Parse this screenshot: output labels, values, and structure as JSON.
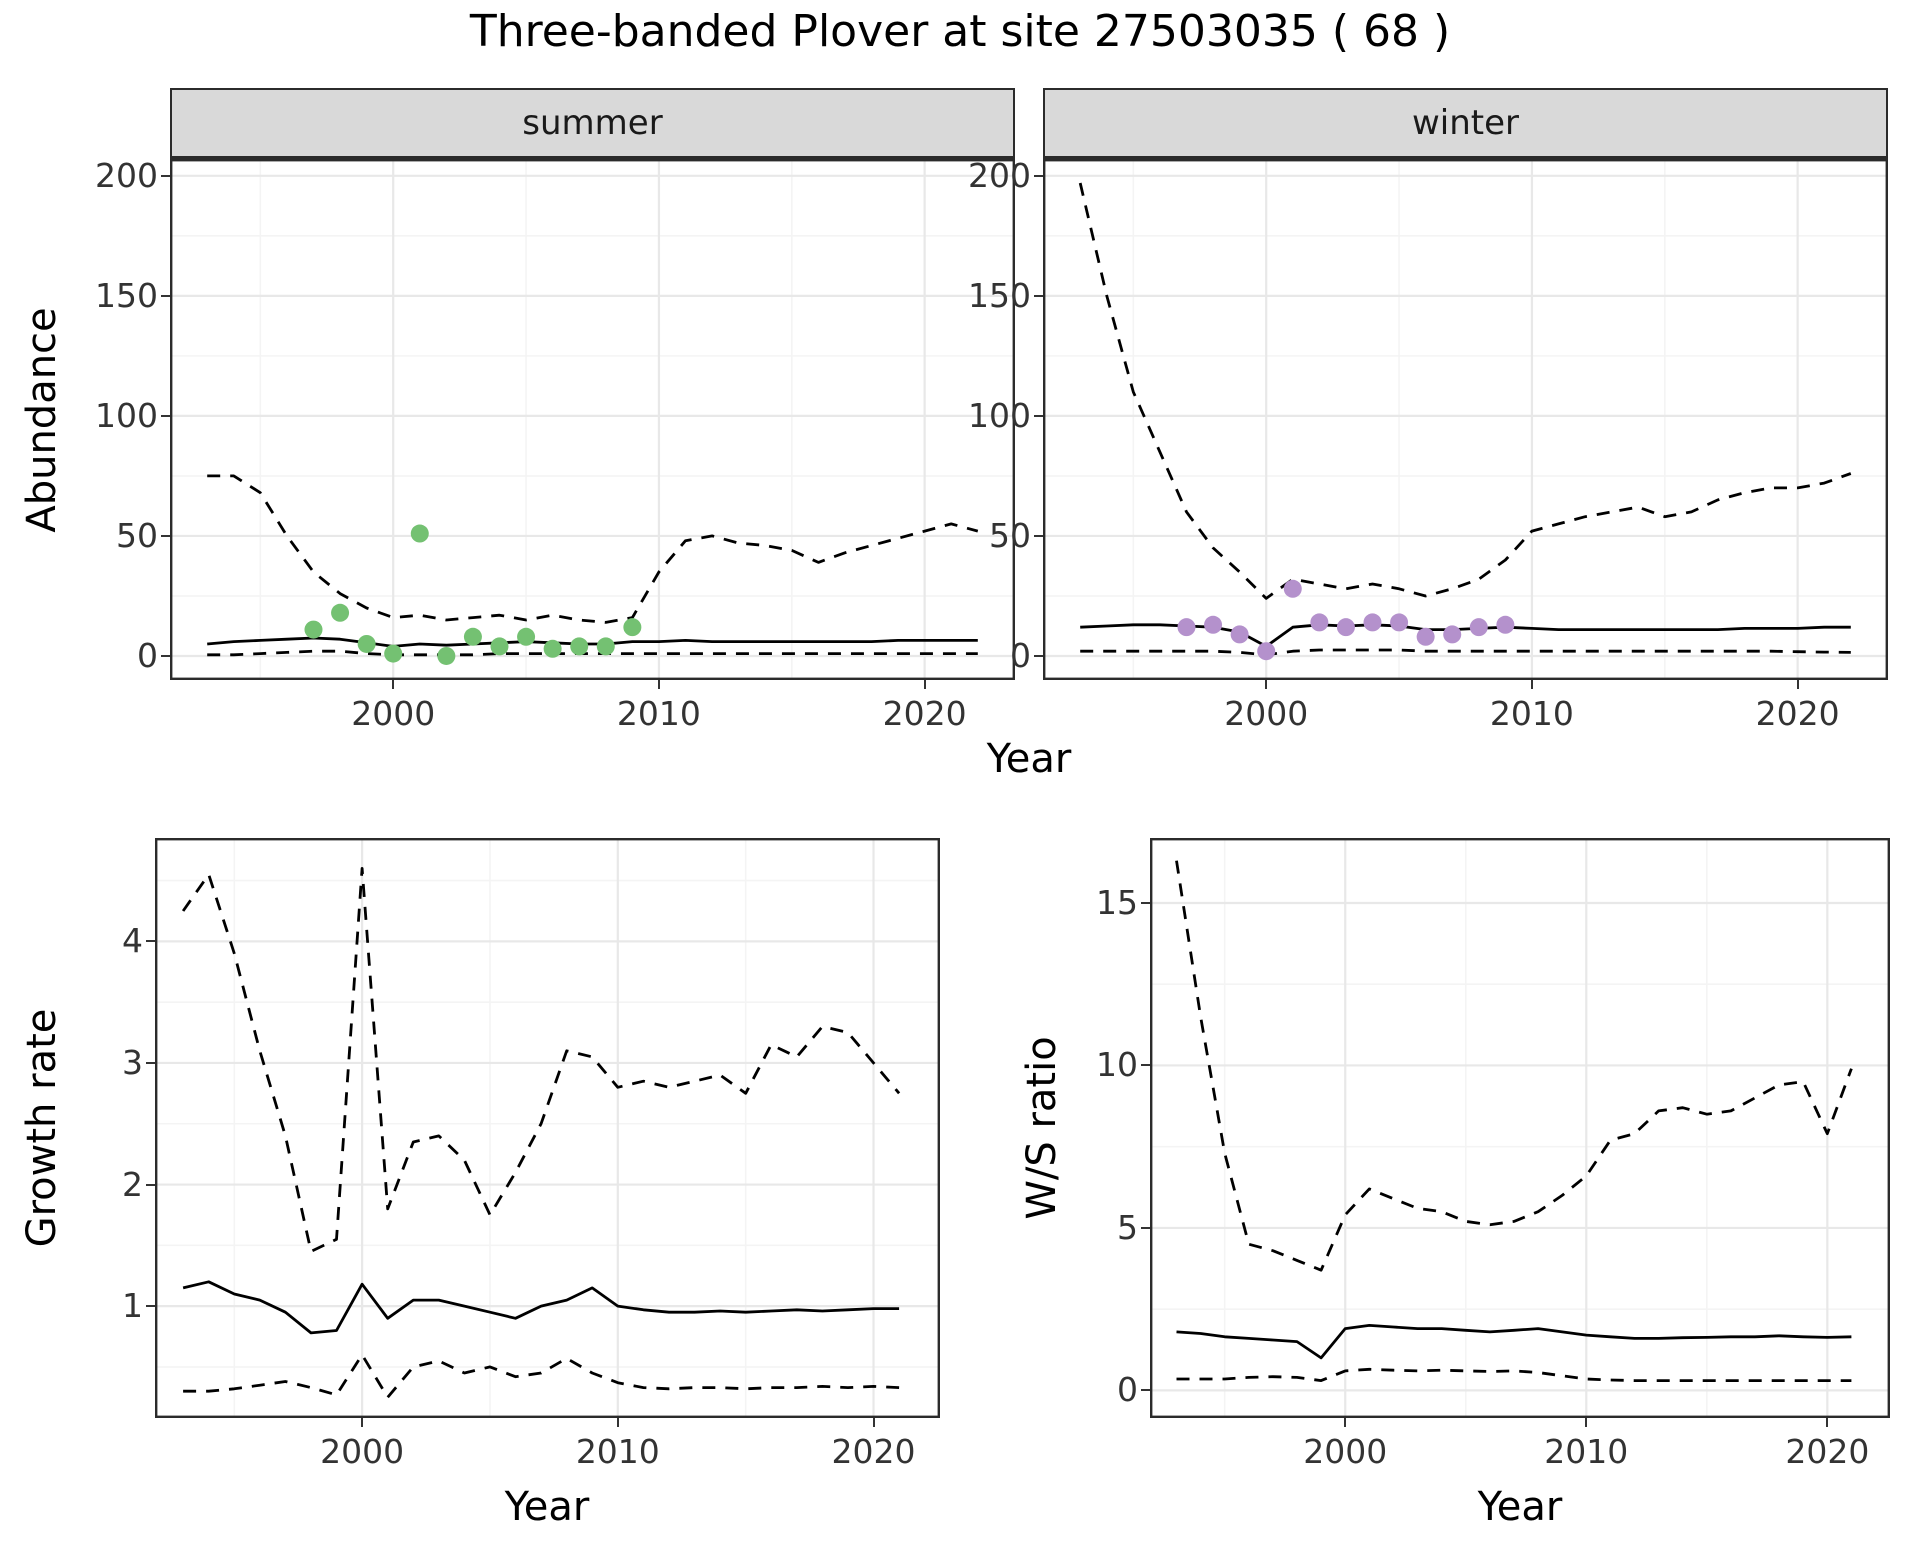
{
  "title": "Three-banded Plover at site 27503035 ( 68 )",
  "colors": {
    "series_line": "#000000",
    "summer_points": "#74c172",
    "winter_points": "#b491cc",
    "strip_background": "#d9d9d9",
    "panel_border": "#2b2b2b",
    "grid_major": "#e8e8e8",
    "grid_minor": "#f4f4f4",
    "tick_text": "#333333"
  },
  "chart_data": [
    {
      "type": "line",
      "facet_label": "summer",
      "ylabel": "Abundance",
      "xlabel": "Year",
      "grid": true,
      "legend": "none",
      "xlim": [
        1991.6,
        2023.4
      ],
      "ylim": [
        -10,
        207
      ],
      "xticks": [
        2000,
        2010,
        2020
      ],
      "xticks_minor": [
        1995,
        2005,
        2015
      ],
      "yticks": [
        0,
        50,
        100,
        150,
        200
      ],
      "yticks_minor": [
        25,
        75,
        125,
        175
      ],
      "x": [
        1993,
        1994,
        1995,
        1996,
        1997,
        1998,
        1999,
        2000,
        2001,
        2002,
        2003,
        2004,
        2005,
        2006,
        2007,
        2008,
        2009,
        2010,
        2011,
        2012,
        2013,
        2014,
        2015,
        2016,
        2017,
        2018,
        2019,
        2020,
        2021,
        2022
      ],
      "series": [
        {
          "name": "upper_ci",
          "linetype": "dashed",
          "values": [
            75,
            75,
            68,
            50,
            35,
            26,
            20,
            16,
            17,
            15,
            16,
            17,
            15,
            17,
            15,
            14,
            16,
            35,
            48,
            50,
            47,
            46,
            44,
            39,
            43,
            46,
            49,
            52,
            55,
            52
          ]
        },
        {
          "name": "median",
          "linetype": "solid",
          "values": [
            5,
            6,
            6.5,
            7,
            7.5,
            7,
            5.5,
            4,
            5,
            4.5,
            5,
            5.5,
            6,
            5.5,
            5,
            5,
            6,
            6,
            6.5,
            6,
            6,
            6,
            6,
            6,
            6,
            6,
            6.5,
            6.5,
            6.5,
            6.5
          ]
        },
        {
          "name": "lower_ci",
          "linetype": "dashed",
          "values": [
            0.5,
            0.5,
            1,
            1.5,
            2,
            2,
            1,
            0.5,
            0.5,
            0.5,
            0.5,
            1,
            1,
            1,
            1,
            1,
            1,
            1,
            1,
            1,
            1,
            1,
            1,
            1,
            1,
            1,
            1,
            1,
            1,
            1
          ]
        }
      ],
      "points": {
        "name": "observed_counts_summer",
        "color_key": "summer_points",
        "x": [
          1997,
          1998,
          1999,
          2000,
          2001,
          2002,
          2003,
          2004,
          2005,
          2006,
          2007,
          2008,
          2009
        ],
        "y": [
          11,
          18,
          5,
          1,
          51,
          0,
          8,
          4,
          8,
          3,
          4,
          4,
          12
        ]
      }
    },
    {
      "type": "line",
      "facet_label": "winter",
      "ylabel": "Abundance",
      "xlabel": "Year",
      "grid": true,
      "legend": "none",
      "xlim": [
        1991.6,
        2023.4
      ],
      "ylim": [
        -10,
        207
      ],
      "xticks": [
        2000,
        2010,
        2020
      ],
      "xticks_minor": [
        1995,
        2005,
        2015
      ],
      "yticks": [
        0,
        50,
        100,
        150,
        200
      ],
      "yticks_minor": [
        25,
        75,
        125,
        175
      ],
      "x": [
        1993,
        1994,
        1995,
        1996,
        1997,
        1998,
        1999,
        2000,
        2001,
        2002,
        2003,
        2004,
        2005,
        2006,
        2007,
        2008,
        2009,
        2010,
        2011,
        2012,
        2013,
        2014,
        2015,
        2016,
        2017,
        2018,
        2019,
        2020,
        2021,
        2022
      ],
      "series": [
        {
          "name": "upper_ci",
          "linetype": "dashed",
          "values": [
            197,
            150,
            110,
            85,
            60,
            45,
            35,
            24,
            32,
            30,
            28,
            30,
            28,
            25,
            28,
            32,
            40,
            52,
            55,
            58,
            60,
            62,
            58,
            60,
            65,
            68,
            70,
            70,
            72,
            76
          ]
        },
        {
          "name": "median",
          "linetype": "solid",
          "values": [
            12,
            12.5,
            13,
            13,
            12.5,
            12,
            10,
            4,
            12,
            13,
            12.5,
            13,
            12.5,
            11,
            11,
            11.5,
            12,
            11.5,
            11,
            11,
            11,
            11,
            11,
            11,
            11,
            11.5,
            11.5,
            11.5,
            12,
            12
          ]
        },
        {
          "name": "lower_ci",
          "linetype": "dashed",
          "values": [
            2,
            2,
            2,
            2,
            2,
            2,
            1.5,
            0.5,
            2,
            2.5,
            2.5,
            2.5,
            2.5,
            2,
            2,
            2,
            2,
            2,
            2,
            2,
            2,
            2,
            2,
            2,
            2,
            2,
            2,
            1.8,
            1.6,
            1.5
          ]
        }
      ],
      "points": {
        "name": "observed_counts_winter",
        "color_key": "winter_points",
        "x": [
          1997,
          1998,
          1999,
          2000,
          2001,
          2002,
          2003,
          2004,
          2005,
          2006,
          2007,
          2008,
          2009
        ],
        "y": [
          12,
          13,
          9,
          2,
          28,
          14,
          12,
          14,
          14,
          8,
          9,
          12,
          13
        ]
      }
    },
    {
      "type": "line",
      "facet_label": "",
      "ylabel": "Growth rate",
      "xlabel": "Year",
      "grid": true,
      "legend": "none",
      "xlim": [
        1991.9,
        2022.6
      ],
      "ylim": [
        0.08,
        4.85
      ],
      "xticks": [
        2000,
        2010,
        2020
      ],
      "xticks_minor": [
        1995,
        2005,
        2015
      ],
      "yticks": [
        1,
        2,
        3,
        4
      ],
      "yticks_minor": [
        0.5,
        1.5,
        2.5,
        3.5,
        4.5
      ],
      "x": [
        1993,
        1994,
        1995,
        1996,
        1997,
        1998,
        1999,
        2000,
        2001,
        2002,
        2003,
        2004,
        2005,
        2006,
        2007,
        2008,
        2009,
        2010,
        2011,
        2012,
        2013,
        2014,
        2015,
        2016,
        2017,
        2018,
        2019,
        2020,
        2021
      ],
      "series": [
        {
          "name": "upper_ci",
          "linetype": "dashed",
          "values": [
            4.25,
            4.55,
            3.9,
            3.1,
            2.4,
            1.45,
            1.55,
            4.6,
            1.8,
            2.35,
            2.4,
            2.2,
            1.75,
            2.1,
            2.5,
            3.1,
            3.05,
            2.8,
            2.85,
            2.8,
            2.85,
            2.9,
            2.75,
            3.15,
            3.05,
            3.3,
            3.25,
            3.0,
            2.75
          ]
        },
        {
          "name": "median",
          "linetype": "solid",
          "values": [
            1.15,
            1.2,
            1.1,
            1.05,
            0.95,
            0.78,
            0.8,
            1.18,
            0.9,
            1.05,
            1.05,
            1.0,
            0.95,
            0.9,
            1.0,
            1.05,
            1.15,
            1.0,
            0.97,
            0.95,
            0.95,
            0.96,
            0.95,
            0.96,
            0.97,
            0.96,
            0.97,
            0.98,
            0.98
          ]
        },
        {
          "name": "lower_ci",
          "linetype": "dashed",
          "values": [
            0.3,
            0.3,
            0.32,
            0.35,
            0.38,
            0.33,
            0.27,
            0.6,
            0.25,
            0.5,
            0.55,
            0.45,
            0.5,
            0.42,
            0.45,
            0.57,
            0.45,
            0.37,
            0.33,
            0.32,
            0.33,
            0.33,
            0.32,
            0.33,
            0.33,
            0.34,
            0.33,
            0.34,
            0.33
          ]
        }
      ]
    },
    {
      "type": "line",
      "facet_label": "",
      "ylabel": "W/S ratio",
      "xlabel": "Year",
      "grid": true,
      "legend": "none",
      "xlim": [
        1991.9,
        2022.6
      ],
      "ylim": [
        -0.85,
        17.0
      ],
      "xticks": [
        2000,
        2010,
        2020
      ],
      "xticks_minor": [
        1995,
        2005,
        2015
      ],
      "yticks": [
        0,
        5,
        10,
        15
      ],
      "yticks_minor": [
        2.5,
        7.5,
        12.5
      ],
      "x": [
        1993,
        1994,
        1995,
        1996,
        1997,
        1998,
        1999,
        2000,
        2001,
        2002,
        2003,
        2004,
        2005,
        2006,
        2007,
        2008,
        2009,
        2010,
        2011,
        2012,
        2013,
        2014,
        2015,
        2016,
        2017,
        2018,
        2019,
        2020,
        2021
      ],
      "series": [
        {
          "name": "upper_ci",
          "linetype": "dashed",
          "values": [
            16.3,
            11.5,
            7.3,
            4.5,
            4.3,
            4.0,
            3.7,
            5.4,
            6.2,
            5.9,
            5.6,
            5.5,
            5.2,
            5.1,
            5.2,
            5.5,
            6.0,
            6.6,
            7.7,
            7.9,
            8.6,
            8.7,
            8.5,
            8.6,
            9.0,
            9.4,
            9.5,
            7.9,
            9.9
          ]
        },
        {
          "name": "median",
          "linetype": "solid",
          "values": [
            1.8,
            1.75,
            1.65,
            1.6,
            1.55,
            1.5,
            1.0,
            1.9,
            2.0,
            1.95,
            1.9,
            1.9,
            1.85,
            1.8,
            1.85,
            1.9,
            1.8,
            1.7,
            1.65,
            1.6,
            1.6,
            1.62,
            1.63,
            1.65,
            1.65,
            1.68,
            1.65,
            1.63,
            1.65
          ]
        },
        {
          "name": "lower_ci",
          "linetype": "dashed",
          "values": [
            0.35,
            0.35,
            0.35,
            0.4,
            0.42,
            0.4,
            0.3,
            0.6,
            0.65,
            0.62,
            0.6,
            0.62,
            0.6,
            0.58,
            0.6,
            0.55,
            0.45,
            0.35,
            0.32,
            0.3,
            0.3,
            0.3,
            0.3,
            0.3,
            0.3,
            0.3,
            0.3,
            0.3,
            0.3
          ]
        }
      ]
    }
  ]
}
